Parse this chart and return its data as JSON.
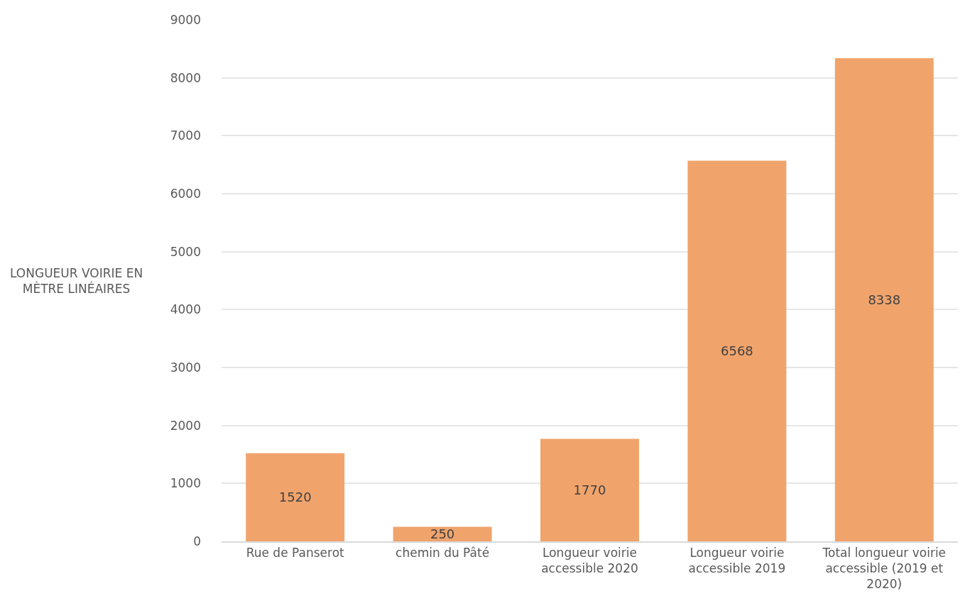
{
  "chart_data": {
    "type": "bar",
    "ylabel": "LONGUEUR VOIRIE EN MÈTRE LINÉAIRES",
    "categories": [
      "Rue de Panserot",
      "chemin du Pâté",
      "Longueur voirie accessible 2020",
      "Longueur voirie accessible 2019",
      "Total longueur voirie accessible (2019 et 2020)"
    ],
    "values": [
      1520,
      250,
      1770,
      6568,
      8338
    ],
    "color": "#f0a46c",
    "ylim": [
      0,
      9000
    ],
    "yticks": [
      0,
      1000,
      2000,
      3000,
      4000,
      5000,
      6000,
      7000,
      8000,
      9000
    ],
    "grid": "y",
    "data_labels": true
  }
}
